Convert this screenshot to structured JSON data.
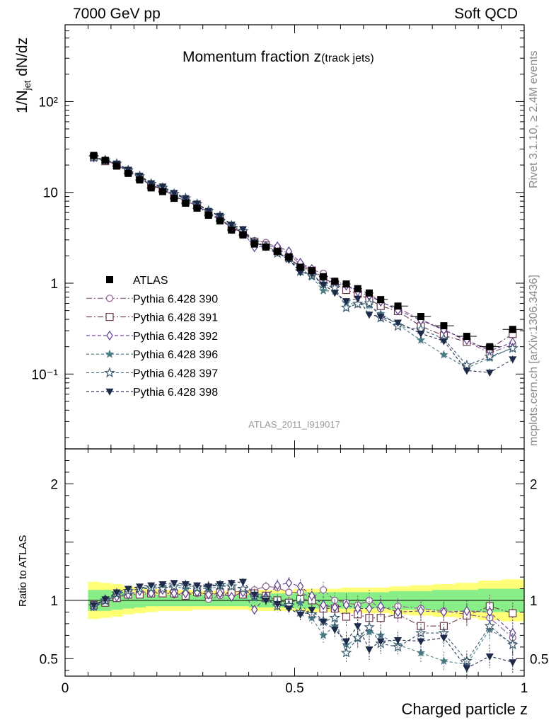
{
  "header": {
    "left": "7000 GeV pp",
    "right": "Soft QCD"
  },
  "side_labels": {
    "rivet": "Rivet 3.1.10, ≥ 2.4M events",
    "mcplots": "mcplots.cern.ch [arXiv:1306.3436]"
  },
  "chart_data": {
    "type": "scatter",
    "title": "Momentum fraction z(track jets)",
    "title_main": "Momentum fraction z",
    "title_sub": "(track jets)",
    "analysis": "ATLAS_2011_I919017",
    "xlabel": "Charged particle z",
    "ylabel": "1/N_jet dN/dz",
    "ylabel_parts": [
      "1/N",
      "jet",
      " dN/dz"
    ],
    "ratio_ylabel": "Ratio to ATLAS",
    "xlim": [
      0,
      1
    ],
    "ylim": [
      0.015,
      700
    ],
    "yscale": "log",
    "ratio_ylim": [
      0.35,
      2.3
    ],
    "x_ticks": [
      "0",
      "0.5",
      "1"
    ],
    "y_ticks": [
      "10⁻¹",
      "1",
      "10",
      "10²"
    ],
    "ratio_ticks": [
      "0.5",
      "1",
      "2"
    ],
    "legend_position": "middle-left",
    "x": [
      0.0625,
      0.0875,
      0.1125,
      0.1375,
      0.1625,
      0.1875,
      0.2125,
      0.2375,
      0.2625,
      0.2875,
      0.3125,
      0.3375,
      0.3625,
      0.3875,
      0.4125,
      0.4375,
      0.4625,
      0.4875,
      0.5125,
      0.5375,
      0.5625,
      0.5875,
      0.6125,
      0.6375,
      0.6625,
      0.6875,
      0.725,
      0.775,
      0.825,
      0.875,
      0.925,
      0.975
    ],
    "data": {
      "name": "ATLAS",
      "values": [
        25.5,
        22.5,
        19.5,
        16.2,
        13.7,
        11.2,
        10.2,
        8.6,
        7.6,
        6.7,
        5.6,
        4.85,
        3.85,
        3.4,
        2.7,
        2.5,
        2.25,
        1.95,
        1.5,
        1.38,
        1.18,
        1.05,
        0.98,
        0.87,
        0.78,
        0.66,
        0.56,
        0.43,
        0.34,
        0.26,
        0.2,
        0.31
      ],
      "band_inner": [
        0.09,
        0.09,
        0.08,
        0.07,
        0.06,
        0.05,
        0.05,
        0.05,
        0.05,
        0.05,
        0.05,
        0.05,
        0.05,
        0.05,
        0.06,
        0.06,
        0.06,
        0.06,
        0.07,
        0.07,
        0.07,
        0.07,
        0.07,
        0.07,
        0.07,
        0.07,
        0.08,
        0.08,
        0.09,
        0.09,
        0.1,
        0.1
      ],
      "band_outer": [
        0.16,
        0.15,
        0.14,
        0.12,
        0.11,
        0.1,
        0.09,
        0.09,
        0.09,
        0.08,
        0.08,
        0.08,
        0.08,
        0.08,
        0.09,
        0.09,
        0.09,
        0.09,
        0.1,
        0.1,
        0.1,
        0.1,
        0.11,
        0.11,
        0.11,
        0.11,
        0.12,
        0.13,
        0.14,
        0.15,
        0.17,
        0.18
      ]
    },
    "series": [
      {
        "name": "Pythia 6.428 390",
        "marker": "circle-open",
        "color": "#8a5a8c",
        "dash": "8,3,2,3",
        "ratio": [
          0.97,
          0.98,
          1.04,
          1.06,
          1.07,
          1.07,
          1.07,
          1.05,
          1.06,
          1.06,
          1.01,
          1.04,
          1.07,
          1.08,
          1.09,
          1.12,
          1.11,
          1.07,
          1.07,
          1.02,
          1.09,
          1.0,
          0.98,
          0.96,
          1.0,
          0.93,
          0.95,
          0.93,
          0.91,
          0.88,
          0.85,
          0.68
        ],
        "err": [
          0.02,
          0.02,
          0.02,
          0.02,
          0.02,
          0.02,
          0.02,
          0.02,
          0.02,
          0.02,
          0.03,
          0.03,
          0.03,
          0.03,
          0.04,
          0.04,
          0.05,
          0.05,
          0.06,
          0.06,
          0.07,
          0.07,
          0.08,
          0.08,
          0.09,
          0.09,
          0.07,
          0.08,
          0.08,
          0.09,
          0.1,
          0.09
        ]
      },
      {
        "name": "Pythia 6.428 391",
        "marker": "square-open",
        "color": "#6b3a4c",
        "dash": "8,3,2,3",
        "ratio": [
          0.96,
          0.98,
          1.02,
          1.05,
          1.05,
          1.06,
          1.06,
          1.06,
          1.04,
          1.07,
          1.05,
          1.07,
          1.07,
          1.05,
          1.06,
          1.04,
          1.0,
          0.98,
          1.01,
          1.0,
          0.93,
          0.93,
          0.86,
          0.88,
          0.85,
          0.85,
          0.88,
          0.78,
          0.78,
          0.87,
          0.95,
          0.89
        ],
        "err": [
          0.02,
          0.02,
          0.02,
          0.02,
          0.02,
          0.02,
          0.02,
          0.02,
          0.02,
          0.02,
          0.03,
          0.03,
          0.03,
          0.03,
          0.04,
          0.04,
          0.05,
          0.05,
          0.06,
          0.06,
          0.07,
          0.07,
          0.08,
          0.08,
          0.09,
          0.09,
          0.07,
          0.08,
          0.08,
          0.09,
          0.1,
          0.09
        ]
      },
      {
        "name": "Pythia 6.428 392",
        "marker": "diamond-open",
        "color": "#5e3a8c",
        "dash": "5,3",
        "ratio": [
          0.95,
          1.01,
          1.03,
          1.05,
          1.08,
          1.06,
          1.09,
          1.06,
          1.06,
          1.07,
          1.05,
          1.06,
          1.03,
          1.07,
          0.92,
          1.03,
          1.13,
          1.15,
          1.12,
          1.04,
          0.96,
          0.94,
          0.96,
          0.93,
          0.93,
          0.95,
          0.9,
          0.91,
          0.9,
          0.91,
          0.9,
          0.72
        ],
        "err": [
          0.02,
          0.02,
          0.02,
          0.02,
          0.02,
          0.02,
          0.02,
          0.02,
          0.02,
          0.02,
          0.03,
          0.03,
          0.03,
          0.03,
          0.04,
          0.04,
          0.05,
          0.05,
          0.06,
          0.06,
          0.07,
          0.07,
          0.08,
          0.08,
          0.09,
          0.09,
          0.07,
          0.08,
          0.08,
          0.09,
          0.1,
          0.09
        ]
      },
      {
        "name": "Pythia 6.428 396",
        "marker": "star-filled",
        "color": "#4a7a84",
        "dash": "4,3",
        "ratio": [
          0.94,
          0.99,
          1.05,
          1.08,
          1.1,
          1.1,
          1.12,
          1.12,
          1.1,
          1.1,
          1.1,
          1.12,
          1.12,
          1.1,
          1.02,
          1.02,
          0.98,
          0.95,
          0.98,
          0.85,
          0.7,
          0.78,
          0.62,
          0.67,
          0.73,
          0.7,
          0.62,
          0.55,
          0.48,
          0.45,
          0.75,
          0.63
        ],
        "err": [
          0.02,
          0.02,
          0.02,
          0.02,
          0.02,
          0.02,
          0.02,
          0.02,
          0.02,
          0.02,
          0.03,
          0.03,
          0.03,
          0.03,
          0.04,
          0.04,
          0.05,
          0.05,
          0.06,
          0.06,
          0.07,
          0.07,
          0.08,
          0.08,
          0.09,
          0.09,
          0.07,
          0.08,
          0.08,
          0.09,
          0.1,
          0.09
        ]
      },
      {
        "name": "Pythia 6.428 397",
        "marker": "star-open",
        "color": "#3a5a70",
        "dash": "4,3",
        "ratio": [
          0.95,
          1.0,
          1.06,
          1.08,
          1.1,
          1.11,
          1.1,
          1.12,
          1.13,
          1.11,
          1.12,
          1.13,
          1.12,
          1.1,
          1.04,
          1.02,
          0.95,
          0.96,
          0.9,
          0.88,
          0.82,
          0.85,
          0.55,
          0.68,
          0.77,
          0.63,
          0.6,
          0.72,
          0.72,
          0.48,
          0.78,
          0.62
        ],
        "err": [
          0.02,
          0.02,
          0.02,
          0.02,
          0.02,
          0.02,
          0.02,
          0.02,
          0.02,
          0.02,
          0.03,
          0.03,
          0.03,
          0.03,
          0.04,
          0.04,
          0.05,
          0.05,
          0.06,
          0.06,
          0.07,
          0.07,
          0.08,
          0.08,
          0.09,
          0.09,
          0.07,
          0.08,
          0.08,
          0.09,
          0.1,
          0.09
        ]
      },
      {
        "name": "Pythia 6.428 398",
        "marker": "triangle-down-filled",
        "color": "#1e2a4a",
        "dash": "4,3",
        "ratio": [
          0.96,
          1.01,
          1.07,
          1.1,
          1.12,
          1.13,
          1.14,
          1.15,
          1.14,
          1.13,
          1.12,
          1.14,
          1.15,
          1.16,
          1.05,
          1.0,
          0.97,
          0.93,
          0.88,
          0.92,
          0.82,
          0.75,
          0.65,
          0.78,
          0.58,
          0.65,
          0.66,
          0.65,
          0.68,
          0.42,
          0.52,
          0.47
        ],
        "err": [
          0.02,
          0.02,
          0.02,
          0.02,
          0.02,
          0.02,
          0.02,
          0.02,
          0.02,
          0.02,
          0.03,
          0.03,
          0.03,
          0.03,
          0.04,
          0.04,
          0.05,
          0.05,
          0.06,
          0.06,
          0.07,
          0.07,
          0.08,
          0.08,
          0.09,
          0.09,
          0.07,
          0.08,
          0.08,
          0.09,
          0.1,
          0.09
        ]
      }
    ]
  }
}
